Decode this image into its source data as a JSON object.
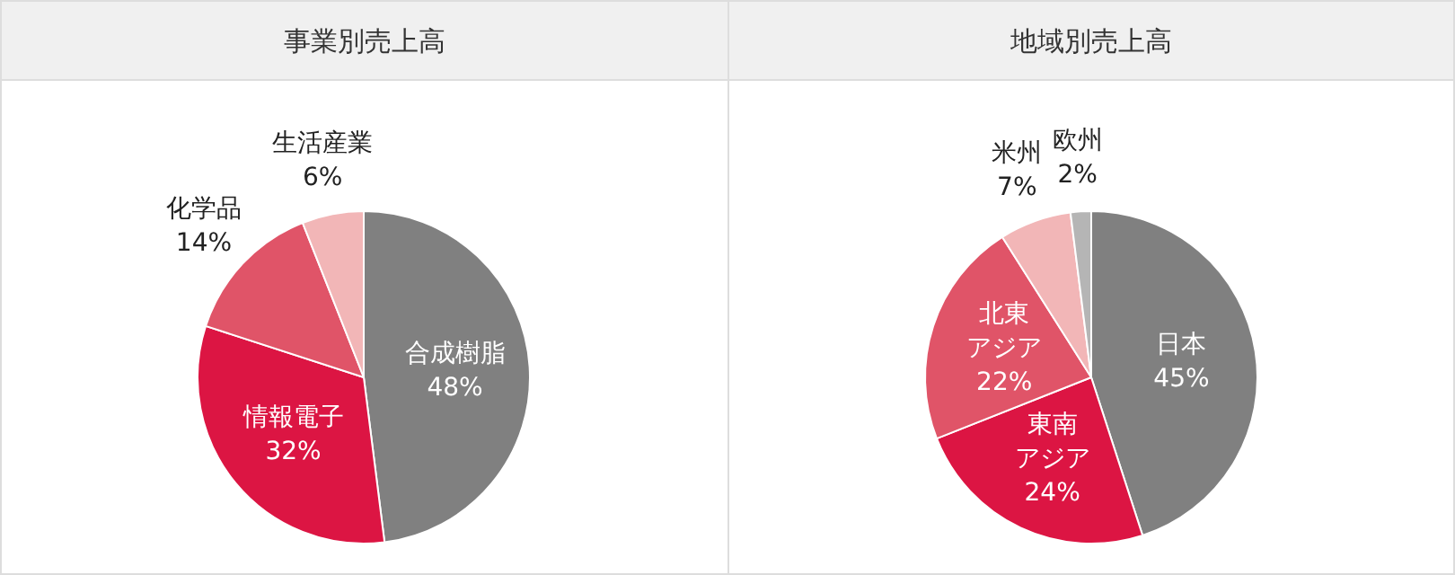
{
  "chart_data": [
    {
      "type": "pie",
      "title": "事業別売上高",
      "categories": [
        "合成樹脂",
        "情報電子",
        "化学品",
        "生活産業"
      ],
      "values": [
        48,
        32,
        14,
        6
      ],
      "value_labels": [
        "48%",
        "32%",
        "14%",
        "6%"
      ],
      "colors": [
        "#808080",
        "#dc1543",
        "#e05468",
        "#f2b6b7"
      ],
      "legend": false
    },
    {
      "type": "pie",
      "title": "地域別売上高",
      "categories": [
        "日本",
        "東南アジア",
        "北東アジア",
        "米州",
        "欧州"
      ],
      "values": [
        45,
        24,
        22,
        7,
        2
      ],
      "value_labels": [
        "45%",
        "24%",
        "22%",
        "7%",
        "2%"
      ],
      "colors": [
        "#808080",
        "#dc1543",
        "#e05468",
        "#f2b6b7",
        "#b5b5b5"
      ],
      "legend": false
    }
  ]
}
